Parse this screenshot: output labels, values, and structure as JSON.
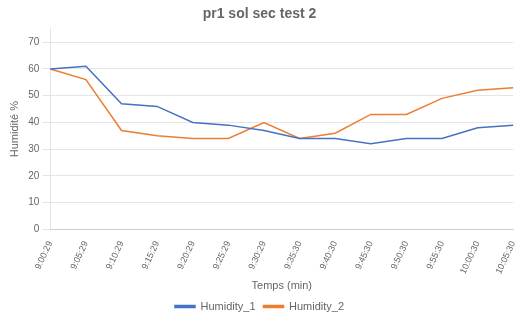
{
  "chart_data": {
    "type": "line",
    "title": "pr1 sol sec test 2",
    "xlabel": "Temps (min)",
    "ylabel": "Humidité %",
    "categories": [
      "9:00:29",
      "9:05:29",
      "9:10:29",
      "9:15:29",
      "9:20:29",
      "9:25:29",
      "9:30:29",
      "9:35:30",
      "9:40:30",
      "9:45:30",
      "9:50:30",
      "9:55:30",
      "10:00:30",
      "10:05:30"
    ],
    "series": [
      {
        "name": "Humidity_1",
        "color": "#4472C4",
        "values": [
          60,
          61,
          47,
          46,
          40,
          39,
          37,
          34,
          34,
          32,
          34,
          34,
          38,
          39
        ]
      },
      {
        "name": "Humidity_2",
        "color": "#ED7D31",
        "values": [
          60,
          56,
          37,
          35,
          34,
          34,
          40,
          34,
          36,
          43,
          43,
          49,
          52,
          53
        ]
      }
    ],
    "ylim": [
      0,
      75
    ],
    "yticks": [
      0,
      10,
      20,
      30,
      40,
      50,
      60,
      70
    ],
    "grid": true,
    "legend": "bottom"
  }
}
